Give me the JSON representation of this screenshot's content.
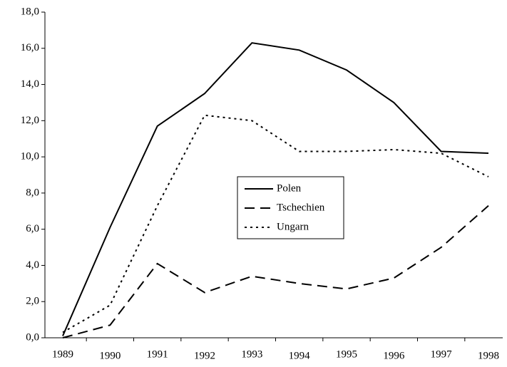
{
  "chart_data": {
    "type": "line",
    "categories": [
      "1989",
      "1990",
      "1991",
      "1992",
      "1993",
      "1994",
      "1995",
      "1996",
      "1997",
      "1998"
    ],
    "series": [
      {
        "name": "Polen",
        "color": "#000000",
        "line_style": "solid",
        "values": [
          0.1,
          6.1,
          11.7,
          13.5,
          16.3,
          15.9,
          14.8,
          13.0,
          10.3,
          10.2
        ]
      },
      {
        "name": "Tschechien",
        "color": "#000000",
        "line_style": "dashed",
        "values": [
          0.0,
          0.7,
          4.1,
          2.5,
          3.4,
          3.0,
          2.7,
          3.3,
          5.0,
          7.3
        ]
      },
      {
        "name": "Ungarn",
        "color": "#000000",
        "line_style": "dotted",
        "values": [
          0.3,
          1.8,
          7.3,
          12.3,
          12.0,
          10.3,
          10.3,
          10.4,
          10.2,
          8.9
        ]
      }
    ],
    "ylim": [
      0,
      18
    ],
    "yticks": [
      {
        "value": 0,
        "label": "0,0"
      },
      {
        "value": 2,
        "label": "2,0"
      },
      {
        "value": 4,
        "label": "4,0"
      },
      {
        "value": 6,
        "label": "6,0"
      },
      {
        "value": 8,
        "label": "8,0"
      },
      {
        "value": 10,
        "label": "10,0"
      },
      {
        "value": 12,
        "label": "12,0"
      },
      {
        "value": 14,
        "label": "14,0"
      },
      {
        "value": 16,
        "label": "16,0"
      },
      {
        "value": 18,
        "label": "18,0"
      }
    ],
    "grid": false,
    "legend": "center"
  }
}
